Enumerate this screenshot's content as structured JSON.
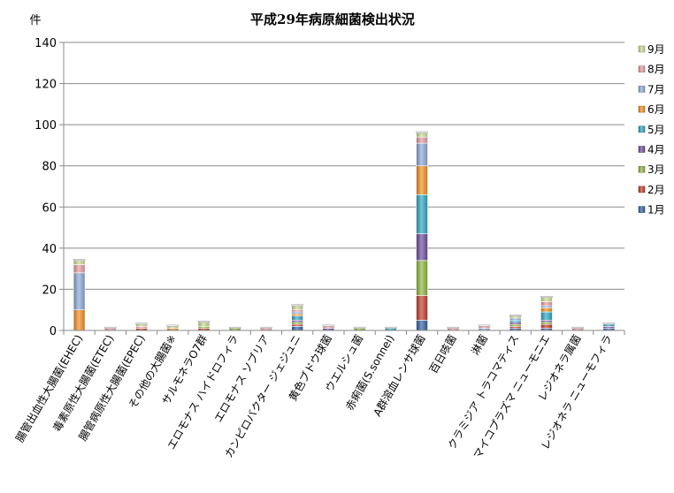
{
  "chart_data": {
    "type": "bar",
    "stacked": true,
    "title": "平成29年病原細菌検出状況",
    "ylabel": "件",
    "ylim": [
      0,
      140
    ],
    "yticks": [
      0,
      20,
      40,
      60,
      80,
      100,
      120,
      140
    ],
    "grid": true,
    "legend_position": "right",
    "categories": [
      "腸管出血性大腸菌(EHEC)",
      "毒素原性大腸菌(ETEC)",
      "腸管病原性大腸菌(EPEC)",
      "その他の大腸菌※",
      "サルモネラO7群",
      "エロモナス ハイドロフィラ",
      "エロモナス ソブリア",
      "カンピロバクター ジェジュニ",
      "黄色ブドウ球菌",
      "ウエルシュ菌",
      "赤痢菌(S.sonnei)",
      "A群溶血レンサ球菌",
      "百日咳菌",
      "淋菌",
      "クラミジア トラコマティス",
      "マイコプラズマ ニューモニエ",
      "レジオネラ属菌",
      "レジオネラ ニューモフィラ"
    ],
    "series": [
      {
        "name": "1月",
        "color": "#2f5f9e",
        "values": [
          0,
          0,
          0,
          0,
          0,
          0,
          0,
          2,
          0,
          0,
          0,
          5,
          0,
          0,
          1,
          1,
          0,
          1
        ]
      },
      {
        "name": "2月",
        "color": "#c0392b",
        "values": [
          0,
          0,
          1,
          0,
          1,
          0,
          0,
          1,
          0,
          0,
          0,
          12,
          0,
          0,
          1,
          2,
          0,
          0
        ]
      },
      {
        "name": "3月",
        "color": "#8cb33a",
        "values": [
          0,
          0,
          0,
          0,
          1,
          1,
          0,
          1,
          0,
          1,
          0,
          17,
          0,
          0,
          1,
          1,
          0,
          0
        ]
      },
      {
        "name": "4月",
        "color": "#6a4a9c",
        "values": [
          0,
          0,
          0,
          0,
          0,
          0,
          0,
          1,
          1,
          0,
          0,
          13,
          0,
          0,
          1,
          1,
          0,
          1
        ]
      },
      {
        "name": "5月",
        "color": "#2aa4c0",
        "values": [
          0,
          0,
          0,
          0,
          0,
          0,
          0,
          2,
          0,
          0,
          1,
          19,
          0,
          0,
          1,
          4,
          0,
          1
        ]
      },
      {
        "name": "6月",
        "color": "#f08c1e",
        "values": [
          10,
          0,
          0,
          1,
          0,
          0,
          0,
          1,
          0,
          0,
          0,
          14,
          0,
          0,
          0,
          2,
          0,
          0
        ]
      },
      {
        "name": "7月",
        "color": "#8aa6d6",
        "values": [
          18,
          0,
          0,
          0,
          0,
          0,
          0,
          1,
          0,
          0,
          0,
          11,
          0,
          1,
          1,
          1,
          0,
          0
        ]
      },
      {
        "name": "8月",
        "color": "#e59aa0",
        "values": [
          4,
          1,
          1,
          0,
          0,
          0,
          1,
          1,
          1,
          0,
          0,
          3,
          1,
          1,
          0,
          2,
          1,
          0
        ]
      },
      {
        "name": "9月",
        "color": "#c7db8f",
        "values": [
          2,
          0,
          1,
          1,
          2,
          0,
          0,
          2,
          0,
          0,
          0,
          2,
          0,
          0,
          1,
          2,
          0,
          0
        ]
      }
    ]
  }
}
